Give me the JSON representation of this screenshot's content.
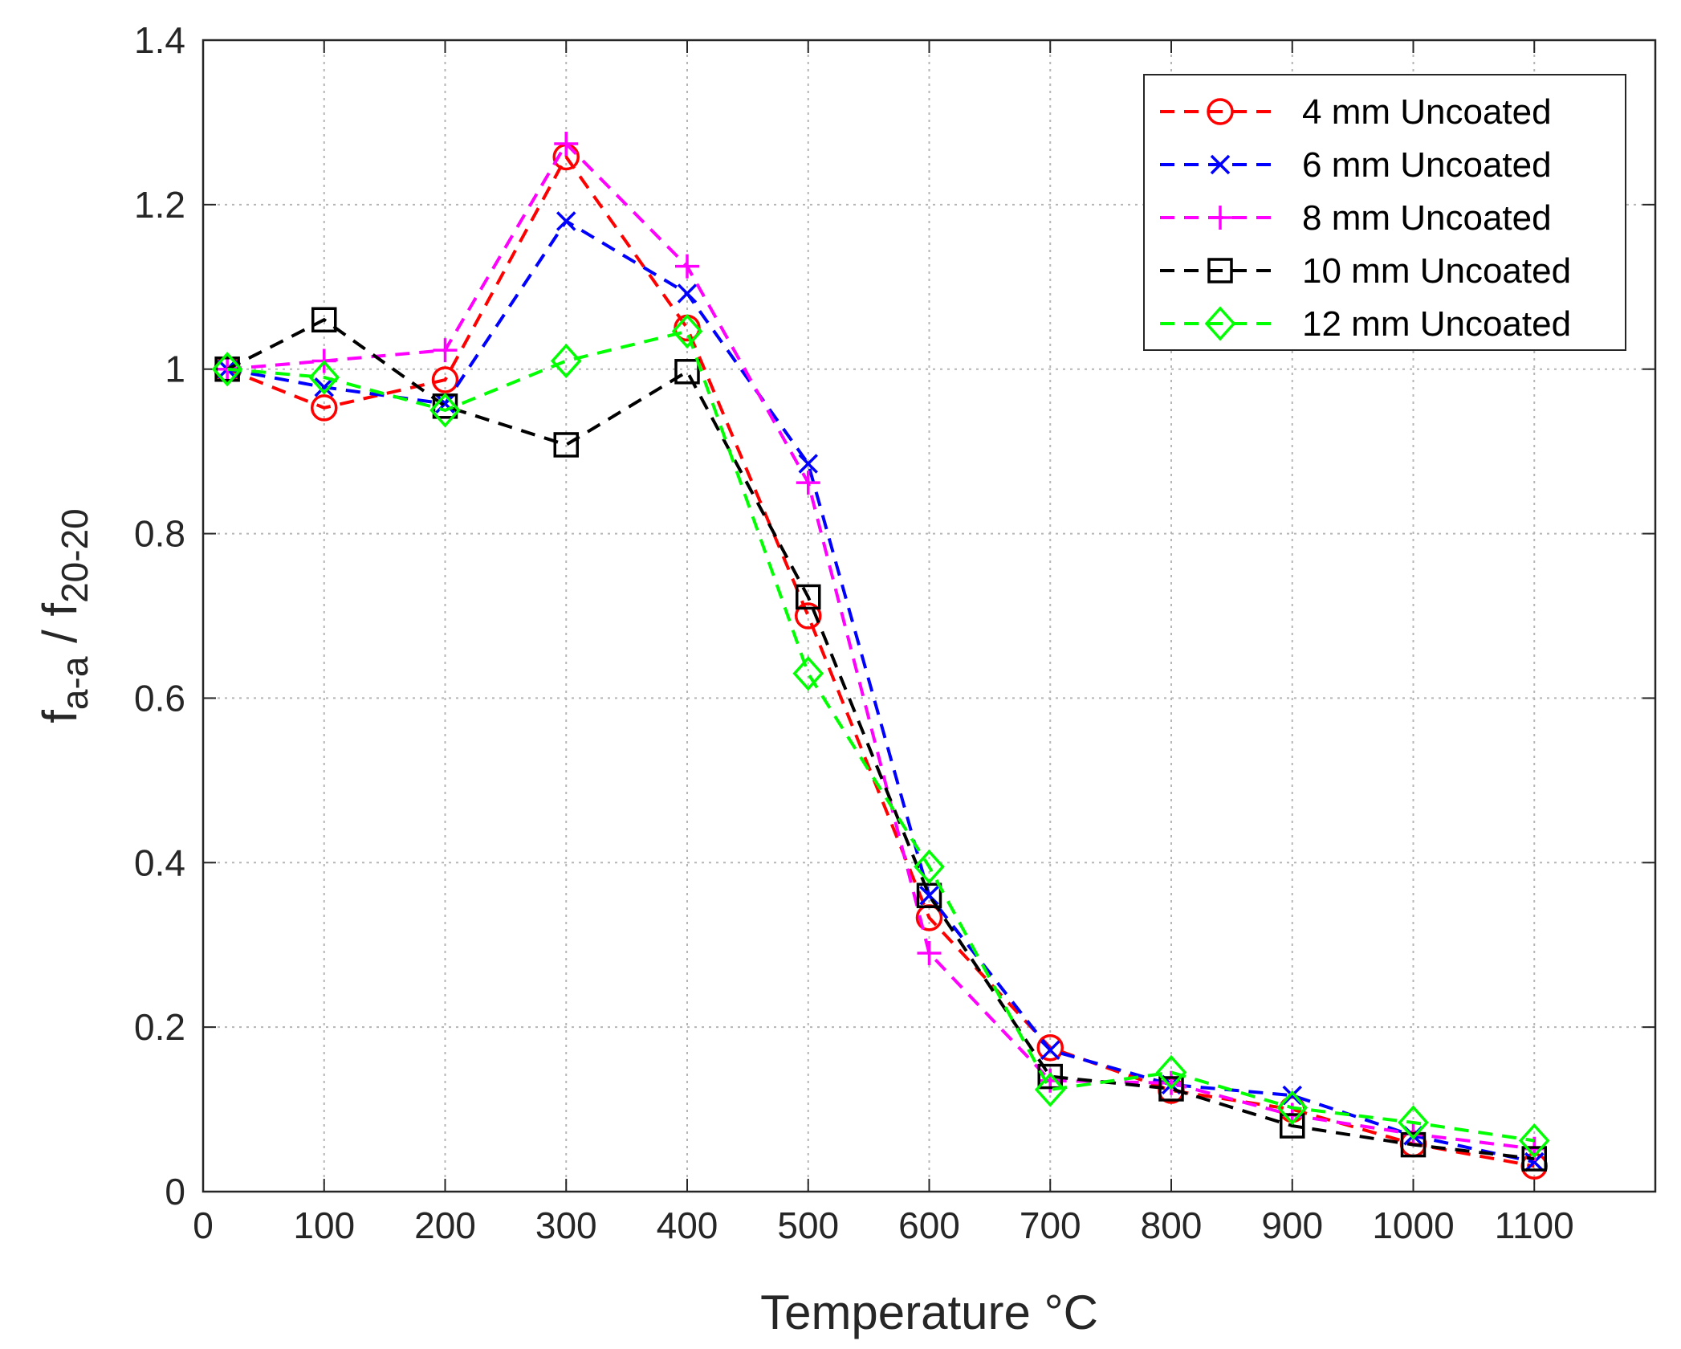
{
  "chart_data": {
    "type": "line",
    "title": "",
    "xlabel": "Temperature °C",
    "ylabel": {
      "base1": "f",
      "sub1": "a-a",
      "mid": " / f",
      "sub2": "20-20"
    },
    "xlim": [
      0,
      1200
    ],
    "ylim": [
      0,
      1.4
    ],
    "xticks": [
      0,
      100,
      200,
      300,
      400,
      500,
      600,
      700,
      800,
      900,
      1000,
      1100
    ],
    "yticks": [
      0,
      0.2,
      0.4,
      0.6,
      0.8,
      1,
      1.2,
      1.4
    ],
    "xtick_labels": [
      "0",
      "100",
      "200",
      "300",
      "400",
      "500",
      "600",
      "700",
      "800",
      "900",
      "1000",
      "1100"
    ],
    "ytick_labels": [
      "0",
      "0.2",
      "0.4",
      "0.6",
      "0.8",
      "1",
      "1.2",
      "1.4"
    ],
    "grid": true,
    "legend_position": "top-right",
    "x": [
      20,
      100,
      200,
      300,
      400,
      500,
      600,
      700,
      800,
      900,
      1000,
      1100
    ],
    "series": [
      {
        "name": "4 mm Uncoated",
        "color": "#ff0000",
        "marker": "circle",
        "values": [
          1.0,
          0.953,
          0.987,
          1.258,
          1.05,
          0.7,
          0.333,
          0.175,
          0.123,
          0.1,
          0.058,
          0.031
        ]
      },
      {
        "name": "6 mm Uncoated",
        "color": "#0000ff",
        "marker": "x",
        "values": [
          1.0,
          0.978,
          0.958,
          1.18,
          1.092,
          0.885,
          0.36,
          0.172,
          0.13,
          0.117,
          0.068,
          0.036
        ]
      },
      {
        "name": "8 mm Uncoated",
        "color": "#ff00ff",
        "marker": "plus",
        "values": [
          1.0,
          1.01,
          1.023,
          1.274,
          1.125,
          0.862,
          0.29,
          0.135,
          0.132,
          0.093,
          0.07,
          0.052
        ]
      },
      {
        "name": "10 mm Uncoated",
        "color": "#000000",
        "marker": "square",
        "values": [
          1.0,
          1.06,
          0.955,
          0.908,
          0.997,
          0.723,
          0.36,
          0.14,
          0.125,
          0.08,
          0.057,
          0.04
        ]
      },
      {
        "name": "12 mm Uncoated",
        "color": "#00ff00",
        "marker": "diamond",
        "values": [
          1.0,
          0.99,
          0.95,
          1.01,
          1.046,
          0.63,
          0.395,
          0.124,
          0.145,
          0.102,
          0.084,
          0.062
        ]
      }
    ]
  }
}
